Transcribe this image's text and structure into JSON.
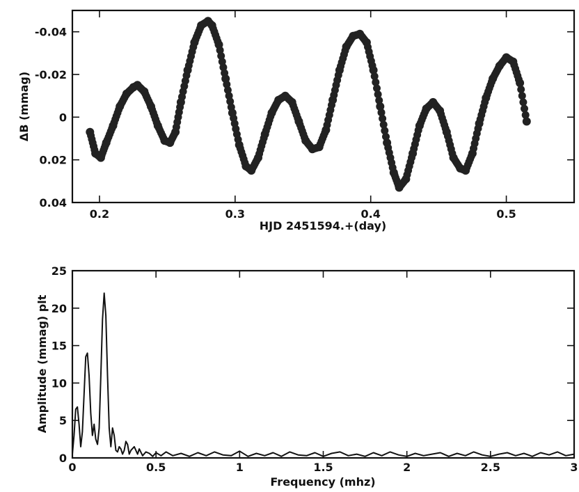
{
  "chart_data": [
    {
      "type": "scatter",
      "xlabel": "HJD 2451594.+(day)",
      "ylabel": "ΔB (mmag)",
      "xlim": [
        0.18,
        0.55
      ],
      "ylim": [
        -0.05,
        0.04
      ],
      "y_inverted": true,
      "xticks": [
        0.2,
        0.3,
        0.4,
        0.5
      ],
      "xtick_labels": [
        "0.2",
        "0.3",
        "0.4",
        "0.5"
      ],
      "yticks": [
        -0.04,
        -0.02,
        0,
        0.02,
        0.04
      ],
      "ytick_labels": [
        "-0.04",
        "-0.02",
        "0",
        "0.02",
        "0.04"
      ],
      "marker_color": "#222222",
      "series": [
        {
          "x": [
            0.193,
            0.197,
            0.201,
            0.205,
            0.21,
            0.215,
            0.22,
            0.225,
            0.228,
            0.233,
            0.238,
            0.243,
            0.248,
            0.252,
            0.256,
            0.26,
            0.265,
            0.27,
            0.275,
            0.28,
            0.283,
            0.288,
            0.293,
            0.298,
            0.303,
            0.308,
            0.312,
            0.317,
            0.322,
            0.327,
            0.332,
            0.337,
            0.342,
            0.347,
            0.352,
            0.357,
            0.362,
            0.367,
            0.372,
            0.377,
            0.382,
            0.387,
            0.392,
            0.397,
            0.402,
            0.407,
            0.412,
            0.417,
            0.421,
            0.426,
            0.431,
            0.436,
            0.441,
            0.446,
            0.451,
            0.456,
            0.461,
            0.466,
            0.47,
            0.475,
            0.48,
            0.485,
            0.49,
            0.495,
            0.5,
            0.505,
            0.51,
            0.515
          ],
          "y": [
            0.007,
            0.017,
            0.019,
            0.012,
            0.004,
            -0.005,
            -0.011,
            -0.014,
            -0.015,
            -0.012,
            -0.005,
            0.004,
            0.011,
            0.012,
            0.007,
            -0.007,
            -0.022,
            -0.035,
            -0.043,
            -0.045,
            -0.043,
            -0.034,
            -0.018,
            -0.002,
            0.013,
            0.023,
            0.025,
            0.019,
            0.008,
            -0.002,
            -0.008,
            -0.01,
            -0.007,
            0.002,
            0.011,
            0.015,
            0.014,
            0.006,
            -0.008,
            -0.022,
            -0.033,
            -0.038,
            -0.039,
            -0.035,
            -0.022,
            -0.005,
            0.012,
            0.026,
            0.033,
            0.029,
            0.017,
            0.004,
            -0.004,
            -0.007,
            -0.003,
            0.007,
            0.019,
            0.024,
            0.025,
            0.017,
            0.003,
            -0.009,
            -0.018,
            -0.024,
            -0.028,
            -0.026,
            -0.016,
            0.002
          ]
        }
      ]
    },
    {
      "type": "line",
      "xlabel": "Frequency (mhz)",
      "ylabel": "Amplitude (mmag) plt",
      "xlim": [
        0,
        3
      ],
      "ylim": [
        0,
        25
      ],
      "xticks": [
        0,
        0.5,
        1,
        1.5,
        2,
        2.5,
        3
      ],
      "xtick_labels": [
        "0",
        "0.5",
        "1",
        "1.5",
        "2",
        "2.5",
        "3"
      ],
      "yticks": [
        0,
        5,
        10,
        15,
        20,
        25
      ],
      "ytick_labels": [
        "0",
        "5",
        "10",
        "15",
        "20",
        "25"
      ],
      "line_color": "#111111",
      "series": [
        {
          "x": [
            0,
            0.01,
            0.02,
            0.03,
            0.04,
            0.05,
            0.06,
            0.07,
            0.08,
            0.09,
            0.1,
            0.11,
            0.12,
            0.13,
            0.14,
            0.15,
            0.16,
            0.17,
            0.18,
            0.19,
            0.2,
            0.21,
            0.22,
            0.23,
            0.24,
            0.25,
            0.26,
            0.27,
            0.28,
            0.29,
            0.3,
            0.31,
            0.32,
            0.33,
            0.34,
            0.35,
            0.37,
            0.39,
            0.4,
            0.42,
            0.44,
            0.46,
            0.48,
            0.5,
            0.53,
            0.56,
            0.6,
            0.65,
            0.7,
            0.75,
            0.8,
            0.85,
            0.9,
            0.95,
            1,
            1.05,
            1.1,
            1.15,
            1.2,
            1.25,
            1.3,
            1.35,
            1.4,
            1.45,
            1.5,
            1.55,
            1.6,
            1.65,
            1.7,
            1.75,
            1.8,
            1.85,
            1.9,
            1.95,
            2,
            2.05,
            2.1,
            2.15,
            2.2,
            2.25,
            2.3,
            2.35,
            2.4,
            2.45,
            2.5,
            2.55,
            2.6,
            2.65,
            2.7,
            2.75,
            2.8,
            2.85,
            2.9,
            2.95,
            3
          ],
          "y": [
            0.5,
            3,
            6.5,
            6.8,
            4.5,
            1.5,
            3.5,
            8.5,
            13.5,
            14,
            11,
            6,
            3,
            4.5,
            2.5,
            1.8,
            4,
            11,
            18.5,
            22,
            19,
            11,
            4,
            1.5,
            4,
            3,
            1,
            0.8,
            1.5,
            1.2,
            0.5,
            1,
            2.2,
            1.8,
            0.5,
            1,
            1.5,
            0.5,
            1.2,
            0.3,
            0.8,
            0.6,
            0.2,
            0.7,
            0.3,
            0.8,
            0.3,
            0.6,
            0.2,
            0.7,
            0.3,
            0.8,
            0.4,
            0.3,
            0.9,
            0.2,
            0.6,
            0.3,
            0.7,
            0.2,
            0.8,
            0.4,
            0.3,
            0.7,
            0.2,
            0.6,
            0.8,
            0.3,
            0.5,
            0.2,
            0.7,
            0.3,
            0.8,
            0.4,
            0.2,
            0.6,
            0.3,
            0.5,
            0.7,
            0.2,
            0.6,
            0.3,
            0.8,
            0.4,
            0.2,
            0.5,
            0.7,
            0.3,
            0.6,
            0.2,
            0.7,
            0.4,
            0.8,
            0.3,
            0.5
          ]
        }
      ]
    }
  ]
}
